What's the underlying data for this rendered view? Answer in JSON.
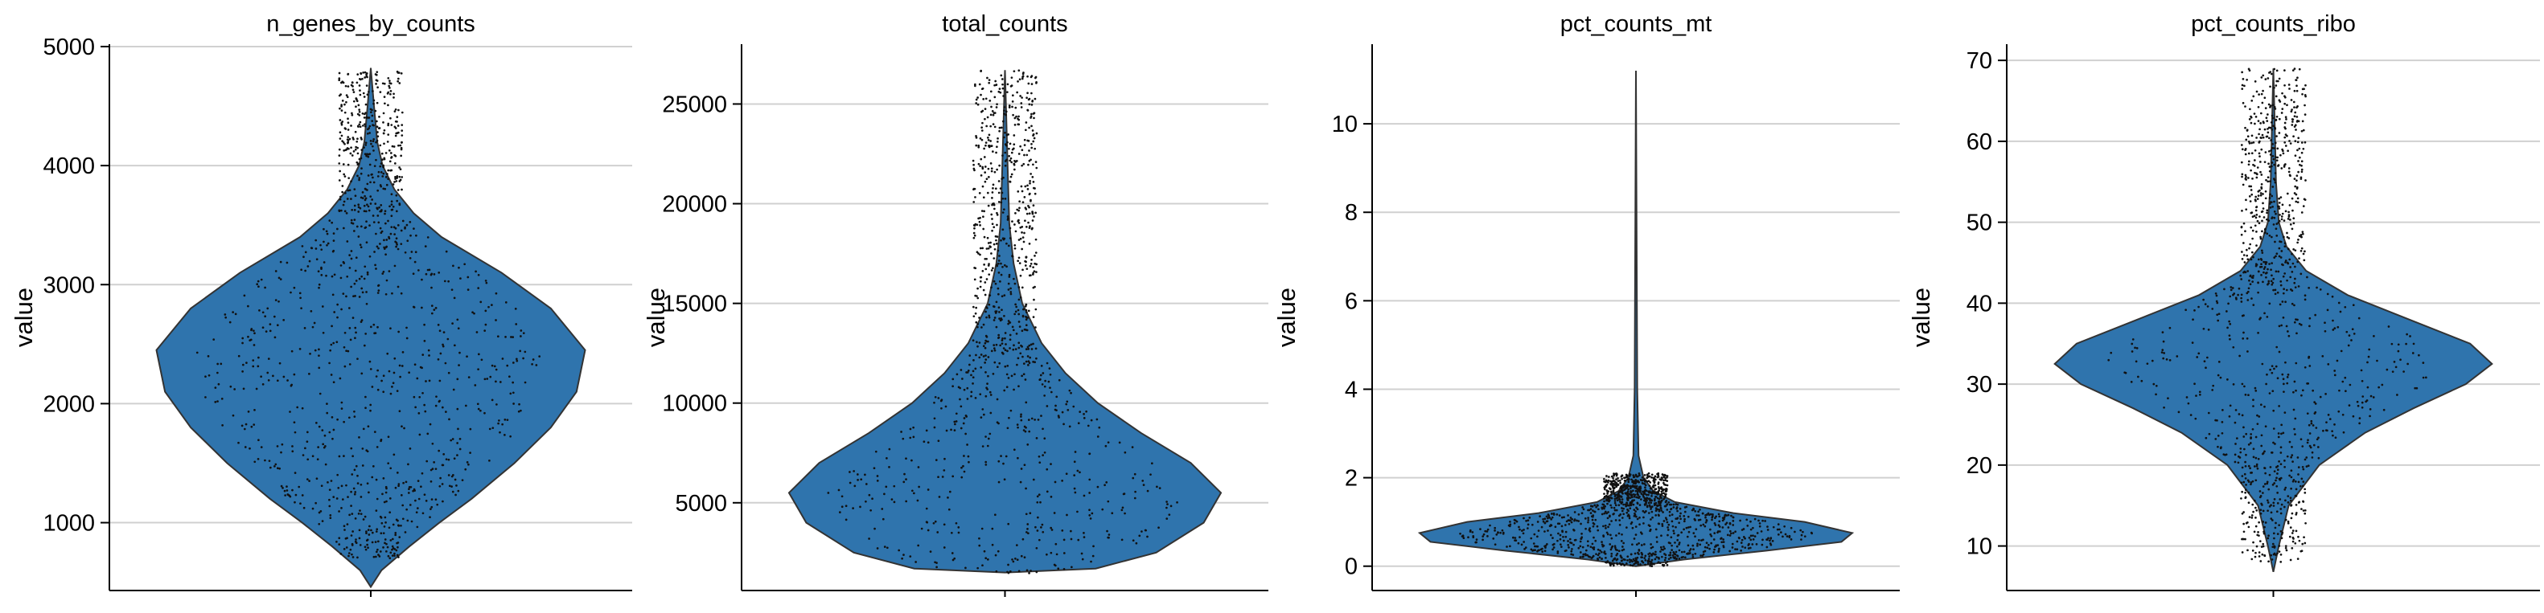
{
  "figure_ylabel": "value",
  "colors": {
    "violin_fill": "#2f74ad",
    "violin_outline": "#333333",
    "points": "#111111",
    "grid": "#d0d0d0",
    "axes": "#000000"
  },
  "chart_data": [
    {
      "type": "violin",
      "title": "n_genes_by_counts",
      "ylabel": "value",
      "ylim": [
        430,
        5020
      ],
      "yticks": [
        1000,
        2000,
        3000,
        4000,
        5000
      ],
      "yticklabels": [
        "1000",
        "2000",
        "3000",
        "4000",
        "5000"
      ],
      "grid": true,
      "violin_profile": [
        [
          460,
          0.0
        ],
        [
          600,
          0.05
        ],
        [
          800,
          0.18
        ],
        [
          1000,
          0.32
        ],
        [
          1200,
          0.47
        ],
        [
          1500,
          0.67
        ],
        [
          1800,
          0.84
        ],
        [
          2100,
          0.96
        ],
        [
          2450,
          1.0
        ],
        [
          2800,
          0.84
        ],
        [
          3100,
          0.61
        ],
        [
          3400,
          0.33
        ],
        [
          3600,
          0.2
        ],
        [
          3800,
          0.11
        ],
        [
          4000,
          0.055
        ],
        [
          4200,
          0.03
        ],
        [
          4500,
          0.015
        ],
        [
          4820,
          0.0
        ]
      ],
      "point_count": 1200,
      "point_range": [
        700,
        4800
      ],
      "point_jitter": 0.82
    },
    {
      "type": "violin",
      "title": "total_counts",
      "ylabel": "value",
      "ylim": [
        600,
        28000
      ],
      "yticks": [
        5000,
        10000,
        15000,
        20000,
        25000
      ],
      "yticklabels": [
        "5000",
        "10000",
        "15000",
        "20000",
        "25000"
      ],
      "grid": true,
      "violin_profile": [
        [
          1500,
          0.0
        ],
        [
          1700,
          0.42
        ],
        [
          2500,
          0.7
        ],
        [
          4000,
          0.92
        ],
        [
          5500,
          1.0
        ],
        [
          7000,
          0.86
        ],
        [
          8500,
          0.63
        ],
        [
          10000,
          0.43
        ],
        [
          11500,
          0.28
        ],
        [
          13000,
          0.17
        ],
        [
          15000,
          0.08
        ],
        [
          17000,
          0.04
        ],
        [
          19000,
          0.02
        ],
        [
          22000,
          0.012
        ],
        [
          26700,
          0.0
        ]
      ],
      "point_count": 1050,
      "point_range": [
        1400,
        26700
      ],
      "point_jitter": 0.82
    },
    {
      "type": "violin",
      "title": "pct_counts_mt",
      "ylabel": "value",
      "ylim": [
        -0.55,
        11.8
      ],
      "yticks": [
        0,
        2,
        4,
        6,
        8,
        10
      ],
      "yticklabels": [
        "0",
        "2",
        "4",
        "6",
        "8",
        "10"
      ],
      "grid": true,
      "violin_profile": [
        [
          0.0,
          0.0
        ],
        [
          0.15,
          0.22
        ],
        [
          0.35,
          0.6
        ],
        [
          0.55,
          0.95
        ],
        [
          0.75,
          1.0
        ],
        [
          1.0,
          0.78
        ],
        [
          1.2,
          0.45
        ],
        [
          1.45,
          0.18
        ],
        [
          1.7,
          0.08
        ],
        [
          2.0,
          0.035
        ],
        [
          2.5,
          0.012
        ],
        [
          4.0,
          0.006
        ],
        [
          11.2,
          0.0
        ]
      ],
      "point_count": 1300,
      "point_range": [
        0.0,
        2.1
      ],
      "point_jitter": 0.82
    },
    {
      "type": "violin",
      "title": "pct_counts_ribo",
      "ylabel": "value",
      "ylim": [
        4.5,
        72.0
      ],
      "yticks": [
        10,
        20,
        30,
        40,
        50,
        60,
        70
      ],
      "yticklabels": [
        "10",
        "20",
        "30",
        "40",
        "50",
        "60",
        "70"
      ],
      "grid": true,
      "violin_profile": [
        [
          6.8,
          0.0
        ],
        [
          10,
          0.025
        ],
        [
          15,
          0.07
        ],
        [
          20,
          0.21
        ],
        [
          24,
          0.42
        ],
        [
          27,
          0.64
        ],
        [
          30,
          0.88
        ],
        [
          32.5,
          1.0
        ],
        [
          35,
          0.9
        ],
        [
          38,
          0.62
        ],
        [
          41,
          0.34
        ],
        [
          44,
          0.15
        ],
        [
          47,
          0.06
        ],
        [
          50,
          0.025
        ],
        [
          55,
          0.012
        ],
        [
          60,
          0.008
        ],
        [
          69,
          0.0
        ]
      ],
      "point_count": 1150,
      "point_range": [
        8,
        69
      ],
      "point_jitter": 0.82
    }
  ]
}
